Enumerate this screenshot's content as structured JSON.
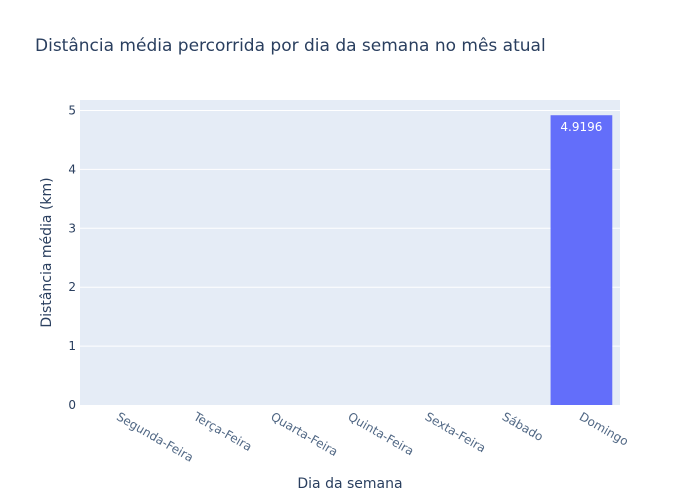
{
  "chart_data": {
    "type": "bar",
    "title": "Distância média percorrida por dia da semana no mês atual",
    "xlabel": "Dia da semana",
    "ylabel": "Distância média (km)",
    "categories": [
      "Segunda-Feira",
      "Terça-Feira",
      "Quarta-Feira",
      "Quinta-Feira",
      "Sexta-Feira",
      "Sábado",
      "Domingo"
    ],
    "values": [
      0,
      0,
      0,
      0,
      0,
      0,
      4.9196
    ],
    "data_labels": [
      "",
      "",
      "",
      "",
      "",
      "",
      "4.9196"
    ],
    "ylim": [
      0,
      5.178
    ],
    "yticks": [
      0,
      1,
      2,
      3,
      4,
      5
    ],
    "grid": true,
    "colors": {
      "bar": "#636efa",
      "plot_bg": "#e5ecf6",
      "grid": "#ffffff",
      "text": "#2a3f5f",
      "tick_text": "#506784",
      "data_label": "#ffffff"
    }
  }
}
